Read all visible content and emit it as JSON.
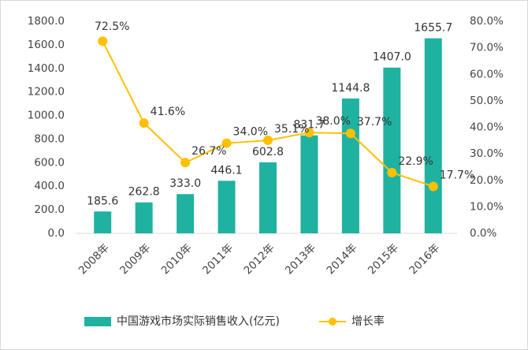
{
  "chart_data": {
    "type": "bar_line",
    "categories": [
      "2008年",
      "2009年",
      "2010年",
      "2011年",
      "2012年",
      "2013年",
      "2014年",
      "2015年",
      "2016年"
    ],
    "series": [
      {
        "name": "中国游戏市场实际销售收入(亿元)",
        "color": "#20b2a0",
        "type": "bar",
        "values": [
          185.6,
          262.8,
          333.0,
          446.1,
          602.8,
          831.7,
          1144.8,
          1407.0,
          1655.7
        ],
        "value_labels": [
          "185.6",
          "262.8",
          "333.0",
          "446.1",
          "602.8",
          "831.7",
          "1144.8",
          "1407.0",
          "1655.7"
        ]
      },
      {
        "name": "增长率",
        "color": "#ffc000",
        "type": "line",
        "axis": "y2",
        "values": [
          72.5,
          41.6,
          26.7,
          34.0,
          35.1,
          38.0,
          37.7,
          22.9,
          17.7
        ],
        "value_labels": [
          "72.5%",
          "41.6%",
          "26.7%",
          "34.0%",
          "35.1%",
          "38.0%",
          "37.7%",
          "22.9%",
          "17.7%"
        ]
      }
    ],
    "ylim": [
      0,
      1800
    ],
    "yticks": [
      {
        "value": 0,
        "label": "0.0"
      },
      {
        "value": 200,
        "label": "200.0"
      },
      {
        "value": 400,
        "label": "400.0"
      },
      {
        "value": 600,
        "label": "600.0"
      },
      {
        "value": 800,
        "label": "800.0"
      },
      {
        "value": 1000,
        "label": "1000.0"
      },
      {
        "value": 1200,
        "label": "1200.0"
      },
      {
        "value": 1400,
        "label": "1400.0"
      },
      {
        "value": 1600,
        "label": "1600.0"
      },
      {
        "value": 1800,
        "label": "1800.0"
      }
    ],
    "y2lim": [
      0,
      80
    ],
    "y2ticks": [
      {
        "value": 0,
        "label": "0.0%"
      },
      {
        "value": 10,
        "label": "10.0%"
      },
      {
        "value": 20,
        "label": "20.0%"
      },
      {
        "value": 30,
        "label": "30.0%"
      },
      {
        "value": 40,
        "label": "40.0%"
      },
      {
        "value": 50,
        "label": "50.0%"
      },
      {
        "value": 60,
        "label": "60.0%"
      },
      {
        "value": 70,
        "label": "70.0%"
      },
      {
        "value": 80,
        "label": "80.0%"
      }
    ],
    "legend": "bottom"
  }
}
